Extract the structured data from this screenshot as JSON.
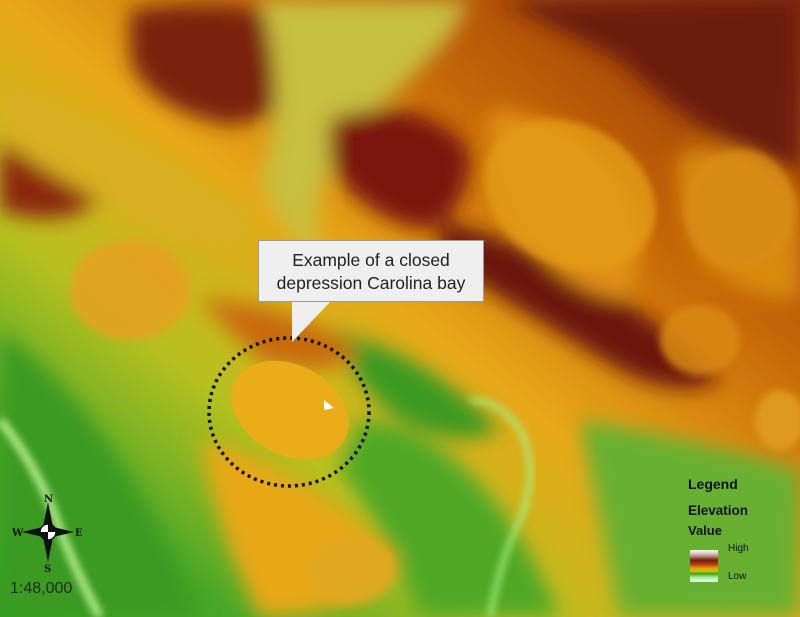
{
  "callout": {
    "line1": "Example of a closed",
    "line2": "depression Carolina bay"
  },
  "legend": {
    "title": "Legend",
    "layer": "Elevation",
    "field": "Value",
    "high_label": "High",
    "low_label": "Low",
    "ramp_colors": [
      "#ffffff",
      "#7a1a0a",
      "#e8a010",
      "#38a818",
      "#f0fff0"
    ]
  },
  "compass": {
    "n": "N",
    "s": "S",
    "e": "E",
    "w": "W",
    "icon": "north-arrow-compass-rose"
  },
  "scale": "1:48,000",
  "colors": {
    "high": "#6e1a08",
    "mid_high": "#c86a08",
    "mid": "#e8a818",
    "low_mid": "#a8c020",
    "low": "#2a9a20",
    "lowest": "#c8f0a0",
    "highlight_ring": "#111111"
  }
}
